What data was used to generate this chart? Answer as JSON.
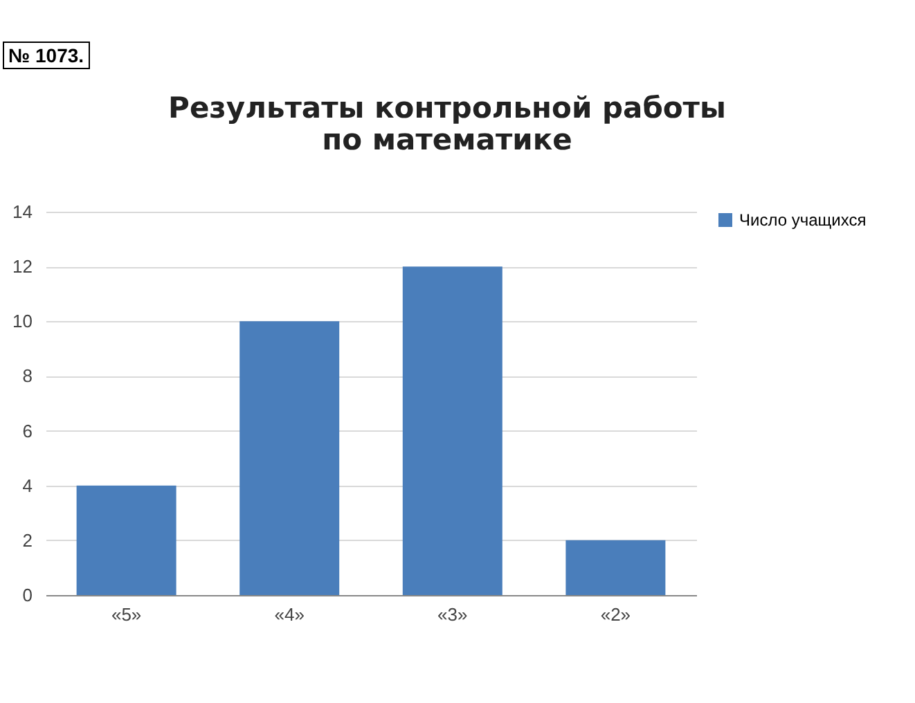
{
  "chart_data": {
    "type": "bar",
    "title": "Результаты контрольной работы по математике",
    "categories": [
      "«5»",
      "«4»",
      "«3»",
      "«2»"
    ],
    "series": [
      {
        "name": "Число учащихся",
        "color": "#4a7ebb",
        "values": [
          4,
          10,
          12,
          2
        ]
      }
    ],
    "ylim": [
      0,
      14
    ],
    "yticks": [
      0,
      2,
      4,
      6,
      8,
      10,
      12,
      14
    ],
    "grid": "y",
    "legend": "right",
    "annotations": [
      "№ 1073."
    ]
  }
}
